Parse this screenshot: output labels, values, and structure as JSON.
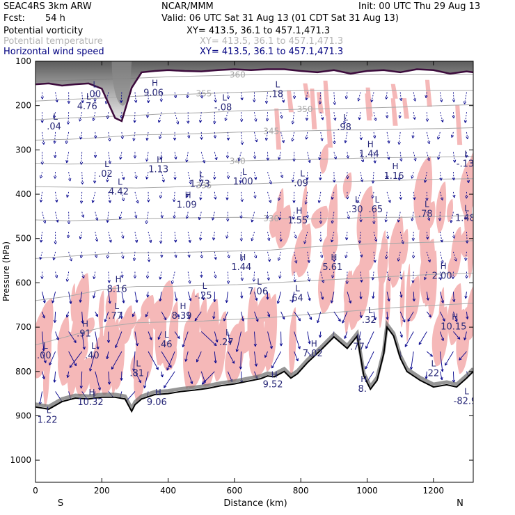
{
  "header": {
    "model": "SEAC4RS  3km ARW",
    "org": "NCAR/MMM",
    "init": "Init: 00 UTC Thu 29 Aug 13",
    "fcst_label": "Fcst:",
    "fcst_value": "54 h",
    "valid": "Valid: 06 UTC Sat 31 Aug 13 (01 CDT Sat 31 Aug 13)"
  },
  "legend": [
    {
      "field": "Potential vorticity",
      "xy": "XY= 413.5, 36.1 to 457.1,471.3",
      "color": "#000000"
    },
    {
      "field": "Potential temperature",
      "xy": "XY= 413.5, 36.1 to 457.1,471.3",
      "color": "#b4b4b4"
    },
    {
      "field": "Horizontal wind speed",
      "xy": "XY= 413.5, 36.1 to 457.1,471.3",
      "color": "#000080"
    }
  ],
  "colors": {
    "terrain": "#000000",
    "pv_high_fill": "#f5b8b8",
    "theta": "#a8a8a8",
    "tropopause": "#3c0a3c",
    "wind": "#00008c",
    "extrema_label": "#282878"
  },
  "chart_data": {
    "type": "cross-section",
    "xlabel": "Distance (km)",
    "ylabel": "Pressure (hPa)",
    "xlim": [
      0,
      1320
    ],
    "ylim": [
      1050,
      100
    ],
    "x_ticks": [
      0,
      200,
      400,
      600,
      800,
      1000,
      1200
    ],
    "y_ticks": [
      100,
      200,
      300,
      400,
      500,
      600,
      700,
      800,
      900,
      1000
    ],
    "x_end_labels": {
      "left": "S",
      "right": "N"
    },
    "theta_contours": [
      {
        "label": "335",
        "p": [
          383,
          384,
          385,
          386,
          384,
          380,
          378,
          375,
          372,
          372,
          370,
          368,
          366,
          365
        ]
      },
      {
        "label": "340",
        "p": [
          330,
          332,
          331,
          330,
          328,
          327,
          325,
          323,
          322,
          320,
          318,
          317,
          316,
          315
        ]
      },
      {
        "label": "345",
        "p": [
          278,
          276,
          272,
          266,
          265,
          263,
          260,
          258,
          257,
          255,
          255,
          253,
          252,
          250
        ]
      },
      {
        "label": "350",
        "p": [
          232,
          228,
          225,
          222,
          218,
          216,
          212,
          210,
          208,
          207,
          205,
          203,
          200,
          198
        ]
      },
      {
        "label": "355",
        "p": [
          190,
          186,
          183,
          179,
          176,
          173,
          170,
          168,
          166,
          166,
          166,
          166,
          166,
          166
        ]
      },
      {
        "label": "360",
        "p": [
          145,
          143,
          141,
          138,
          135,
          133,
          131,
          130,
          130,
          130,
          130,
          130,
          130,
          130
        ]
      },
      {
        "label": "330",
        "p": [
          458,
          460,
          458,
          455,
          454,
          453,
          452,
          455,
          456,
          455,
          452,
          452,
          450,
          448
        ]
      },
      {
        "label": "",
        "p": [
          545,
          540,
          535,
          532,
          532,
          530,
          528,
          526,
          520,
          515,
          512,
          510,
          508,
          505
        ]
      },
      {
        "label": "",
        "p": [
          640,
          630,
          615,
          608,
          608,
          606,
          604,
          600,
          596,
          592,
          588,
          584,
          580,
          578
        ]
      },
      {
        "label": "",
        "p": [
          740,
          720,
          700,
          690,
          688,
          686,
          682,
          678,
          672,
          666,
          660,
          654,
          650,
          646
        ]
      }
    ],
    "terrain_surface": {
      "x": [
        0,
        40,
        80,
        120,
        160,
        200,
        240,
        270,
        290,
        300,
        320,
        360,
        400,
        440,
        480,
        520,
        560,
        600,
        640,
        680,
        700,
        720,
        750,
        770,
        790,
        820,
        860,
        900,
        940,
        970,
        990,
        1010,
        1030,
        1050,
        1060,
        1080,
        1100,
        1120,
        1160,
        1200,
        1240,
        1270,
        1300,
        1320
      ],
      "p": [
        880,
        885,
        868,
        860,
        862,
        858,
        858,
        862,
        890,
        875,
        862,
        852,
        850,
        845,
        842,
        838,
        832,
        828,
        822,
        816,
        810,
        812,
        800,
        815,
        805,
        780,
        752,
        722,
        748,
        720,
        810,
        840,
        820,
        760,
        700,
        720,
        770,
        800,
        820,
        835,
        830,
        835,
        815,
        800
      ]
    },
    "tropopause_pv2": {
      "x": [
        0,
        40,
        80,
        120,
        160,
        200,
        240,
        260,
        290,
        320,
        360,
        400,
        450,
        500,
        550,
        600,
        650,
        700,
        750,
        800,
        850,
        900,
        950,
        1000,
        1050,
        1100,
        1150,
        1200,
        1250,
        1300,
        1320
      ],
      "p": [
        152,
        150,
        155,
        152,
        150,
        162,
        228,
        235,
        160,
        125,
        122,
        120,
        122,
        123,
        120,
        118,
        120,
        118,
        118,
        122,
        125,
        120,
        128,
        122,
        120,
        125,
        118,
        120,
        128,
        123,
        125
      ]
    },
    "extrema": [
      {
        "type": "L",
        "value": ".00",
        "x": 180,
        "p": 165
      },
      {
        "type": "H",
        "value": "9.06",
        "x": 360,
        "p": 162
      },
      {
        "type": "L",
        "value": "4.76",
        "x": 160,
        "p": 193
      },
      {
        "type": "L",
        "value": ".04",
        "x": 60,
        "p": 238
      },
      {
        "type": "L",
        "value": "-.08",
        "x": 570,
        "p": 195
      },
      {
        "type": "L",
        "value": ".18",
        "x": 730,
        "p": 165
      },
      {
        "type": "L",
        "value": ".98",
        "x": 935,
        "p": 240
      },
      {
        "type": "H",
        "value": "1.44",
        "x": 1010,
        "p": 300
      },
      {
        "type": "L",
        "value": "-.13",
        "x": 1300,
        "p": 322
      },
      {
        "type": "L",
        "value": ".02",
        "x": 215,
        "p": 345
      },
      {
        "type": "H",
        "value": "1.13",
        "x": 375,
        "p": 335
      },
      {
        "type": "L",
        "value": "1.73",
        "x": 500,
        "p": 368
      },
      {
        "type": "L",
        "value": "1.00",
        "x": 630,
        "p": 362
      },
      {
        "type": "L",
        "value": ".09",
        "x": 805,
        "p": 366
      },
      {
        "type": "H",
        "value": "1.16",
        "x": 1085,
        "p": 350
      },
      {
        "type": "L",
        "value": "4.42",
        "x": 255,
        "p": 385
      },
      {
        "type": "H",
        "value": "1.09",
        "x": 460,
        "p": 415
      },
      {
        "type": "H",
        "value": "1.55",
        "x": 795,
        "p": 450
      },
      {
        "type": "L",
        "value": ".30",
        "x": 970,
        "p": 425
      },
      {
        "type": "L",
        "value": ".65",
        "x": 1030,
        "p": 425
      },
      {
        "type": "L",
        "value": ".78",
        "x": 1180,
        "p": 435
      },
      {
        "type": "L",
        "value": "1.48",
        "x": 1300,
        "p": 445
      },
      {
        "type": "H",
        "value": "1.44",
        "x": 625,
        "p": 555
      },
      {
        "type": "H",
        "value": "5.61",
        "x": 900,
        "p": 555
      },
      {
        "type": "H",
        "value": "2.00",
        "x": 1230,
        "p": 575
      },
      {
        "type": "H",
        "value": "8.16",
        "x": 250,
        "p": 605
      },
      {
        "type": "L",
        "value": "7.06",
        "x": 675,
        "p": 610
      },
      {
        "type": "L",
        "value": "-.25",
        "x": 510,
        "p": 620
      },
      {
        "type": "L",
        "value": ".64",
        "x": 790,
        "p": 625
      },
      {
        "type": "H",
        "value": "8.39",
        "x": 445,
        "p": 665
      },
      {
        "type": "L",
        "value": ".77",
        "x": 245,
        "p": 665
      },
      {
        "type": "L",
        "value": ".32",
        "x": 1010,
        "p": 675
      },
      {
        "type": "H",
        "value": "10.15",
        "x": 1265,
        "p": 690
      },
      {
        "type": "H",
        "value": ".91",
        "x": 150,
        "p": 705
      },
      {
        "type": "L",
        "value": ".46",
        "x": 395,
        "p": 730
      },
      {
        "type": "L",
        "value": ".27",
        "x": 580,
        "p": 725
      },
      {
        "type": "H",
        "value": "7.02",
        "x": 840,
        "p": 750
      },
      {
        "type": "L",
        "value": ".77",
        "x": 975,
        "p": 735
      },
      {
        "type": "L",
        "value": ".00",
        "x": 30,
        "p": 755
      },
      {
        "type": "L",
        "value": ".40",
        "x": 175,
        "p": 755
      },
      {
        "type": "L",
        "value": ".81",
        "x": 310,
        "p": 795
      },
      {
        "type": "L",
        "value": ".22",
        "x": 1200,
        "p": 795
      },
      {
        "type": "H",
        "value": "10.32",
        "x": 170,
        "p": 860
      },
      {
        "type": "H",
        "value": "9.06",
        "x": 370,
        "p": 860
      },
      {
        "type": "H",
        "value": "9.52",
        "x": 720,
        "p": 820
      },
      {
        "type": "H",
        "value": "8.",
        "x": 990,
        "p": 830
      },
      {
        "type": "L",
        "value": "1.22",
        "x": 40,
        "p": 900
      },
      {
        "type": "L",
        "value": "-82.9",
        "x": 1300,
        "p": 858
      }
    ]
  }
}
